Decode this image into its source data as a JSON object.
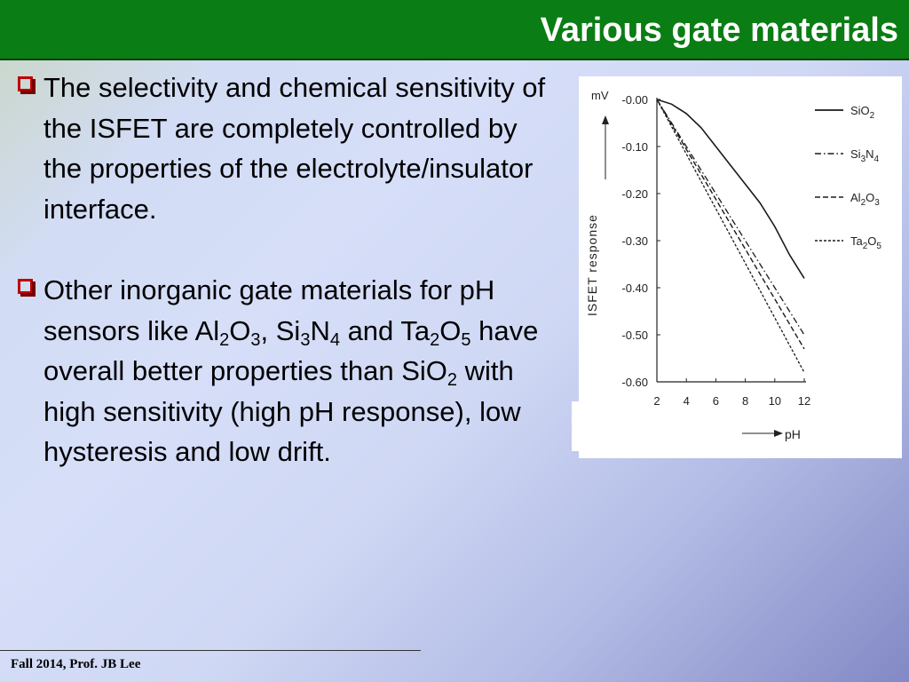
{
  "title": "Various gate materials",
  "bullets": [
    {
      "segments": [
        {
          "t": "The selectivity and chemical sensitivity of the ISFET are completely controlled by the properties of the electrolyte/insulator interface."
        }
      ]
    },
    {
      "segments": [
        {
          "t": "Other inorganic gate materials for pH sensors like Al"
        },
        {
          "sub": "2"
        },
        {
          "t": "O"
        },
        {
          "sub": "3"
        },
        {
          "t": ", Si"
        },
        {
          "sub": "3"
        },
        {
          "t": "N"
        },
        {
          "sub": "4"
        },
        {
          "t": " and Ta"
        },
        {
          "sub": "2"
        },
        {
          "t": "O"
        },
        {
          "sub": "5"
        },
        {
          "t": " have overall better properties than SiO"
        },
        {
          "sub": "2"
        },
        {
          "t": " with high sensitivity (high pH response), low hysteresis and low drift."
        }
      ]
    }
  ],
  "footer": "Fall 2014, Prof. JB Lee",
  "chart_data": {
    "type": "line",
    "ylabel": "ISFET response",
    "yunit": "mV",
    "xlabel": "pH",
    "xlim": [
      2,
      12
    ],
    "ylim": [
      -0.6,
      0.0
    ],
    "xticks": [
      "2",
      "4",
      "6",
      "8",
      "10",
      "12"
    ],
    "yticks": [
      "-0.00",
      "-0.10",
      "-0.20",
      "-0.30",
      "-0.40",
      "-0.50",
      "-0.60"
    ],
    "x": [
      2,
      3,
      4,
      5,
      6,
      7,
      8,
      9,
      10,
      11,
      12
    ],
    "series": [
      {
        "label": "SiO",
        "sub": "2",
        "style": "solid",
        "values": [
          0.0,
          -0.01,
          -0.03,
          -0.06,
          -0.1,
          -0.14,
          -0.18,
          -0.22,
          -0.27,
          -0.33,
          -0.38
        ]
      },
      {
        "label": "Si",
        "sub": "3",
        "label2": "N",
        "sub2": "4",
        "style": "dashdot",
        "values": [
          0.0,
          -0.05,
          -0.1,
          -0.15,
          -0.2,
          -0.25,
          -0.3,
          -0.35,
          -0.4,
          -0.45,
          -0.5
        ]
      },
      {
        "label": "Al",
        "sub": "2",
        "label2": "O",
        "sub2": "3",
        "style": "dashed",
        "values": [
          0.0,
          -0.053,
          -0.106,
          -0.159,
          -0.212,
          -0.265,
          -0.318,
          -0.371,
          -0.424,
          -0.477,
          -0.53
        ]
      },
      {
        "label": "Ta",
        "sub": "2",
        "label2": "O",
        "sub2": "5",
        "style": "dotted",
        "values": [
          0.0,
          -0.058,
          -0.116,
          -0.174,
          -0.232,
          -0.29,
          -0.348,
          -0.406,
          -0.464,
          -0.522,
          -0.58
        ]
      }
    ]
  }
}
